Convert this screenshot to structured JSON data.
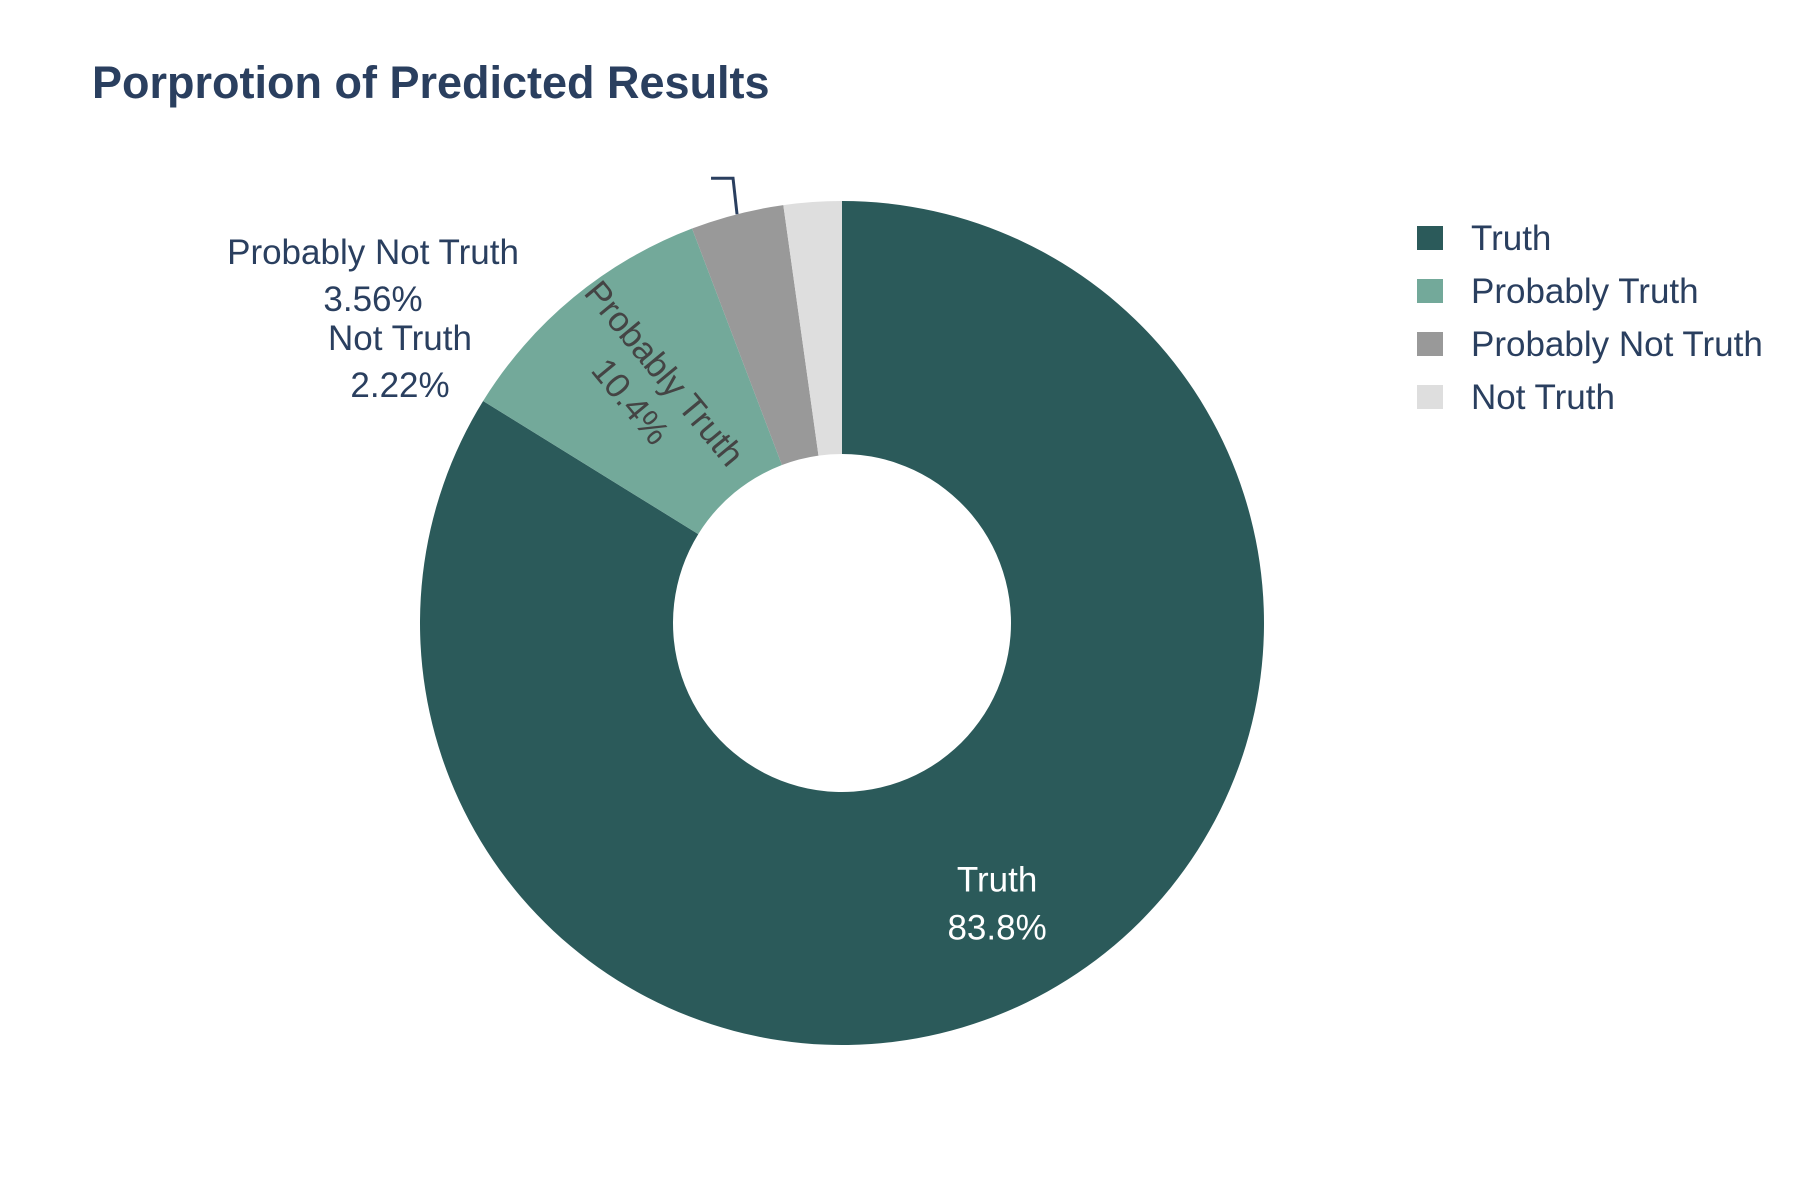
{
  "chart_data": {
    "type": "pie",
    "hole": true,
    "title": "Porprotion of Predicted Results",
    "slices": [
      {
        "label": "Truth",
        "value": 83.8,
        "percent_text": "83.8%",
        "color": "#2b5a5a",
        "text_color": "#ffffff"
      },
      {
        "label": "Probably Truth",
        "value": 10.4,
        "percent_text": "10.4%",
        "color": "#73a99a",
        "text_color": "#444444"
      },
      {
        "label": "Probably Not Truth",
        "value": 3.56,
        "percent_text": "3.56%",
        "color": "#999999",
        "text_color": "#2a3f5f"
      },
      {
        "label": "Not Truth",
        "value": 2.22,
        "percent_text": "2.22%",
        "color": "#dedede",
        "text_color": "#2a3f5f"
      }
    ],
    "legend": {
      "placement": "top-right",
      "items": [
        "Truth",
        "Probably Truth",
        "Probably Not Truth",
        "Not Truth"
      ]
    }
  }
}
